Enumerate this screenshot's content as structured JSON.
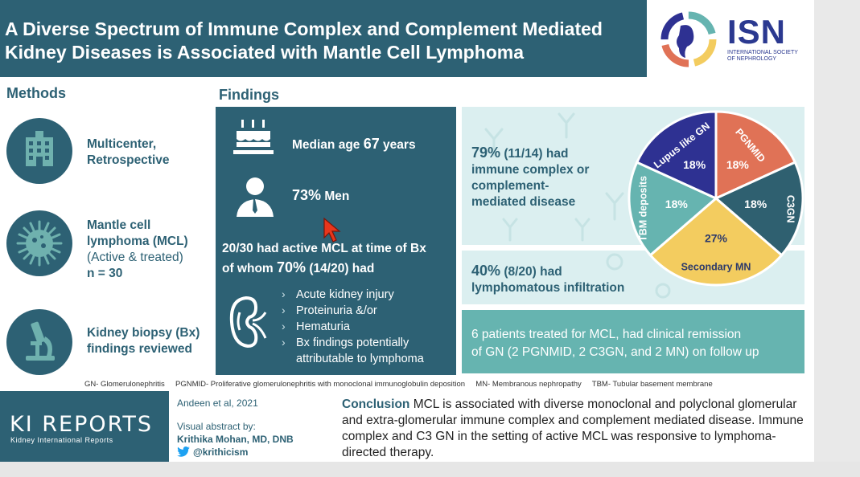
{
  "header": {
    "title_line1": "A Diverse Spectrum of Immune Complex and Complement Mediated",
    "title_line2": "Kidney Diseases is Associated with Mantle Cell Lymphoma",
    "logo_text": "ISN",
    "logo_sub_line1": "INTERNATIONAL SOCIETY",
    "logo_sub_line2": "OF NEPHROLOGY"
  },
  "methods": {
    "title": "Methods",
    "items": [
      {
        "icon": "hospital-icon",
        "line1": "Multicenter,",
        "line2": "Retrospective"
      },
      {
        "icon": "lymphoma-cell-icon",
        "line1": "Mantle cell",
        "line2": "lymphoma (MCL)",
        "line3": "(Active & treated)",
        "line4": "n = 30"
      },
      {
        "icon": "microscope-icon",
        "line1": "Kidney biopsy (Bx)",
        "line2": "findings reviewed"
      }
    ]
  },
  "findings": {
    "title": "Findings",
    "age_prefix": "Median age ",
    "age_value": "67",
    "age_suffix": " years",
    "men_value": "73%",
    "men_suffix": " Men",
    "active_line": "20/30 had active MCL at time of Bx",
    "whom_prefix": "of whom ",
    "whom_value": "70%",
    "whom_suffix": " (14/20) had",
    "bullets": [
      "Acute kidney injury",
      "Proteinuria &/or",
      "Hematuria",
      "Bx findings potentially",
      "attributable to lymphoma"
    ]
  },
  "immune_panel": {
    "pct": "79%",
    "line1_rest": " (11/14) had",
    "line2": "immune complex or",
    "line3": "complement-",
    "line4": "mediated disease"
  },
  "infiltration_panel": {
    "pct": "40%",
    "line1_rest": " (8/20) had",
    "line2": "lymphomatous infiltration"
  },
  "treatment_panel": {
    "line1": "6 patients treated for MCL, had clinical remission",
    "line2": "of GN (2 PGNMID, 2 C3GN, and 2 MN) on follow up"
  },
  "chart_data": {
    "type": "pie",
    "slices": [
      {
        "label": "PGNMID",
        "value": 18,
        "value_label": "18%",
        "color": "#e07256"
      },
      {
        "label": "C3GN",
        "value": 18,
        "value_label": "18%",
        "color": "#2f6070"
      },
      {
        "label": "Secondary MN",
        "value": 27,
        "value_label": "27%",
        "color": "#f3cc5f"
      },
      {
        "label": "TBM deposits",
        "value": 18,
        "value_label": "18%",
        "color": "#66b4b0"
      },
      {
        "label": "Lupus like GN",
        "value": 18,
        "value_label": "18%",
        "color": "#2e3192"
      }
    ]
  },
  "footnote": "GN- Glomerulonephritis     PGNMID- Proliferative glomerulonephritis with monoclonal immunoglobulin deposition     MN- Membranous nephropathy     TBM- Tubular basement membrane",
  "footer": {
    "journal_title": "KI REPORTS",
    "journal_sub": "Kidney International Reports",
    "citation": "Andeen et al, 2021",
    "visual_by": "Visual abstract by:",
    "author": "Krithika Mohan, MD, DNB",
    "twitter": "@krithicism",
    "conclusion_label": "Conclusion",
    "conclusion_text": " MCL is associated with diverse monoclonal and polyclonal glomerular and extra-glomerular immune complex and complement mediated disease. Immune complex and C3 GN in the setting of active MCL was responsive to lymphoma-directed therapy."
  },
  "colors": {
    "primary": "#2d6174",
    "light_panel": "#dbeff0",
    "teal_panel": "#66b4b0",
    "cursor": "#e8361c"
  }
}
